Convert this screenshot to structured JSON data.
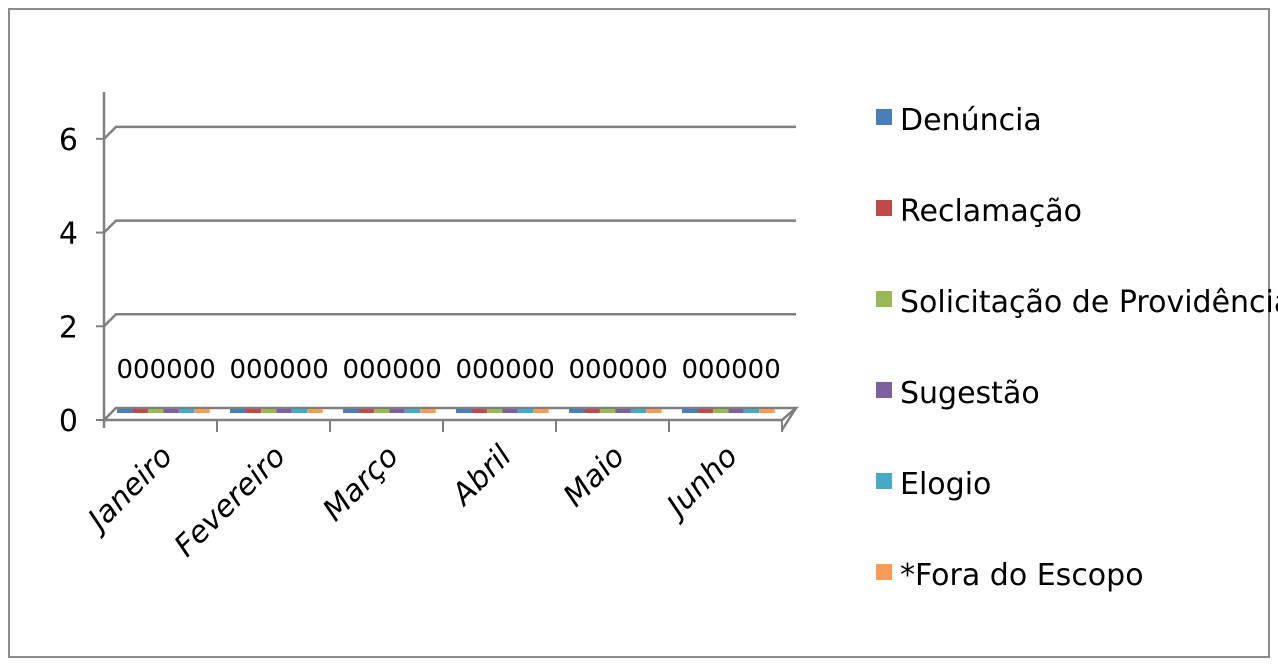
{
  "chart_data": {
    "type": "bar",
    "categories": [
      "Janeiro",
      "Fevereiro",
      "Março",
      "Abril",
      "Maio",
      "Junho"
    ],
    "series": [
      {
        "name": "Denúncia",
        "values": [
          0,
          0,
          0,
          0,
          0,
          0
        ]
      },
      {
        "name": "Reclamação",
        "values": [
          0,
          0,
          0,
          0,
          0,
          0
        ]
      },
      {
        "name": "Solicitação de Providências",
        "values": [
          0,
          0,
          0,
          0,
          0,
          0
        ]
      },
      {
        "name": "Sugestão",
        "values": [
          0,
          0,
          0,
          0,
          0,
          0
        ]
      },
      {
        "name": "Elogio",
        "values": [
          0,
          0,
          0,
          0,
          0,
          0
        ]
      },
      {
        "name": "*Fora do Escopo",
        "values": [
          0,
          0,
          0,
          0,
          0,
          0
        ]
      }
    ],
    "y_ticks": [
      "0",
      "2",
      "4",
      "6"
    ],
    "ylim": [
      0,
      7
    ],
    "grid": true,
    "legend": "right",
    "colors": [
      "#4a7ebb",
      "#be4b48",
      "#98b954",
      "#7d60a0",
      "#46aac5",
      "#f59d56"
    ]
  }
}
